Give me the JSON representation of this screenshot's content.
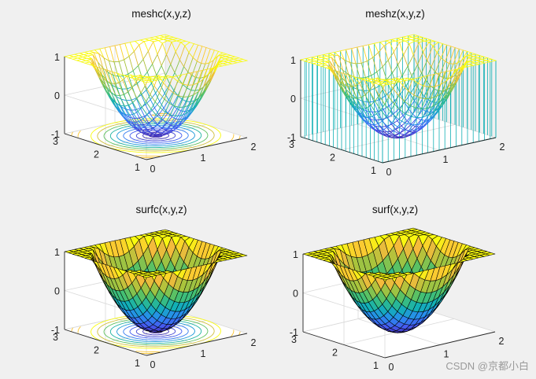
{
  "watermark": "CSDN @京都小白",
  "surface": {
    "function": "z = ((x-1)^2 + (y-2)^2)*2 - 1",
    "x_range": [
      0,
      2
    ],
    "y_range": [
      1,
      3
    ],
    "z_range": [
      -1,
      1
    ],
    "grid_points": 21,
    "contour_levels": 10
  },
  "colors": {
    "low": "#3e26a8",
    "mid": "#12b0b5",
    "high": "#f9fb0e",
    "edge_dark": "#000000",
    "background": "#f0f0f0",
    "axes_bg": "#ffffff",
    "axis_line": "#262626",
    "grid": "#d9d9d9"
  },
  "chart_data": [
    {
      "type": "mesh",
      "title": "meshc(x,y,z)",
      "variant": "meshc",
      "x_ticks": [
        "0",
        "1",
        "2"
      ],
      "y_ticks": [
        "1",
        "2",
        "3"
      ],
      "z_ticks": [
        "-1",
        "0",
        "1"
      ],
      "xlim": [
        0,
        2
      ],
      "ylim": [
        1,
        3
      ],
      "zlim": [
        -1,
        1
      ],
      "contour": true,
      "curtain": false,
      "grid": true
    },
    {
      "type": "mesh",
      "title": "meshz(x,y,z)",
      "variant": "meshz",
      "x_ticks": [
        "0",
        "1",
        "2"
      ],
      "y_ticks": [
        "1",
        "2",
        "3"
      ],
      "z_ticks": [
        "-1",
        "0",
        "1"
      ],
      "xlim": [
        0,
        2
      ],
      "ylim": [
        1,
        3
      ],
      "zlim": [
        -1,
        1
      ],
      "contour": false,
      "curtain": true,
      "grid": true
    },
    {
      "type": "surface",
      "title": "surfc(x,y,z)",
      "variant": "surfc",
      "x_ticks": [
        "0",
        "1",
        "2"
      ],
      "y_ticks": [
        "1",
        "2",
        "3"
      ],
      "z_ticks": [
        "-1",
        "0",
        "1"
      ],
      "xlim": [
        0,
        2
      ],
      "ylim": [
        1,
        3
      ],
      "zlim": [
        -1,
        1
      ],
      "contour": true,
      "curtain": false,
      "grid": true
    },
    {
      "type": "surface",
      "title": "surf(x,y,z)",
      "variant": "surf",
      "x_ticks": [
        "0",
        "1",
        "2"
      ],
      "y_ticks": [
        "1",
        "2",
        "3"
      ],
      "z_ticks": [
        "-1",
        "0",
        "1"
      ],
      "xlim": [
        0,
        2
      ],
      "ylim": [
        1,
        3
      ],
      "zlim": [
        -1,
        1
      ],
      "contour": false,
      "curtain": false,
      "grid": true
    }
  ]
}
